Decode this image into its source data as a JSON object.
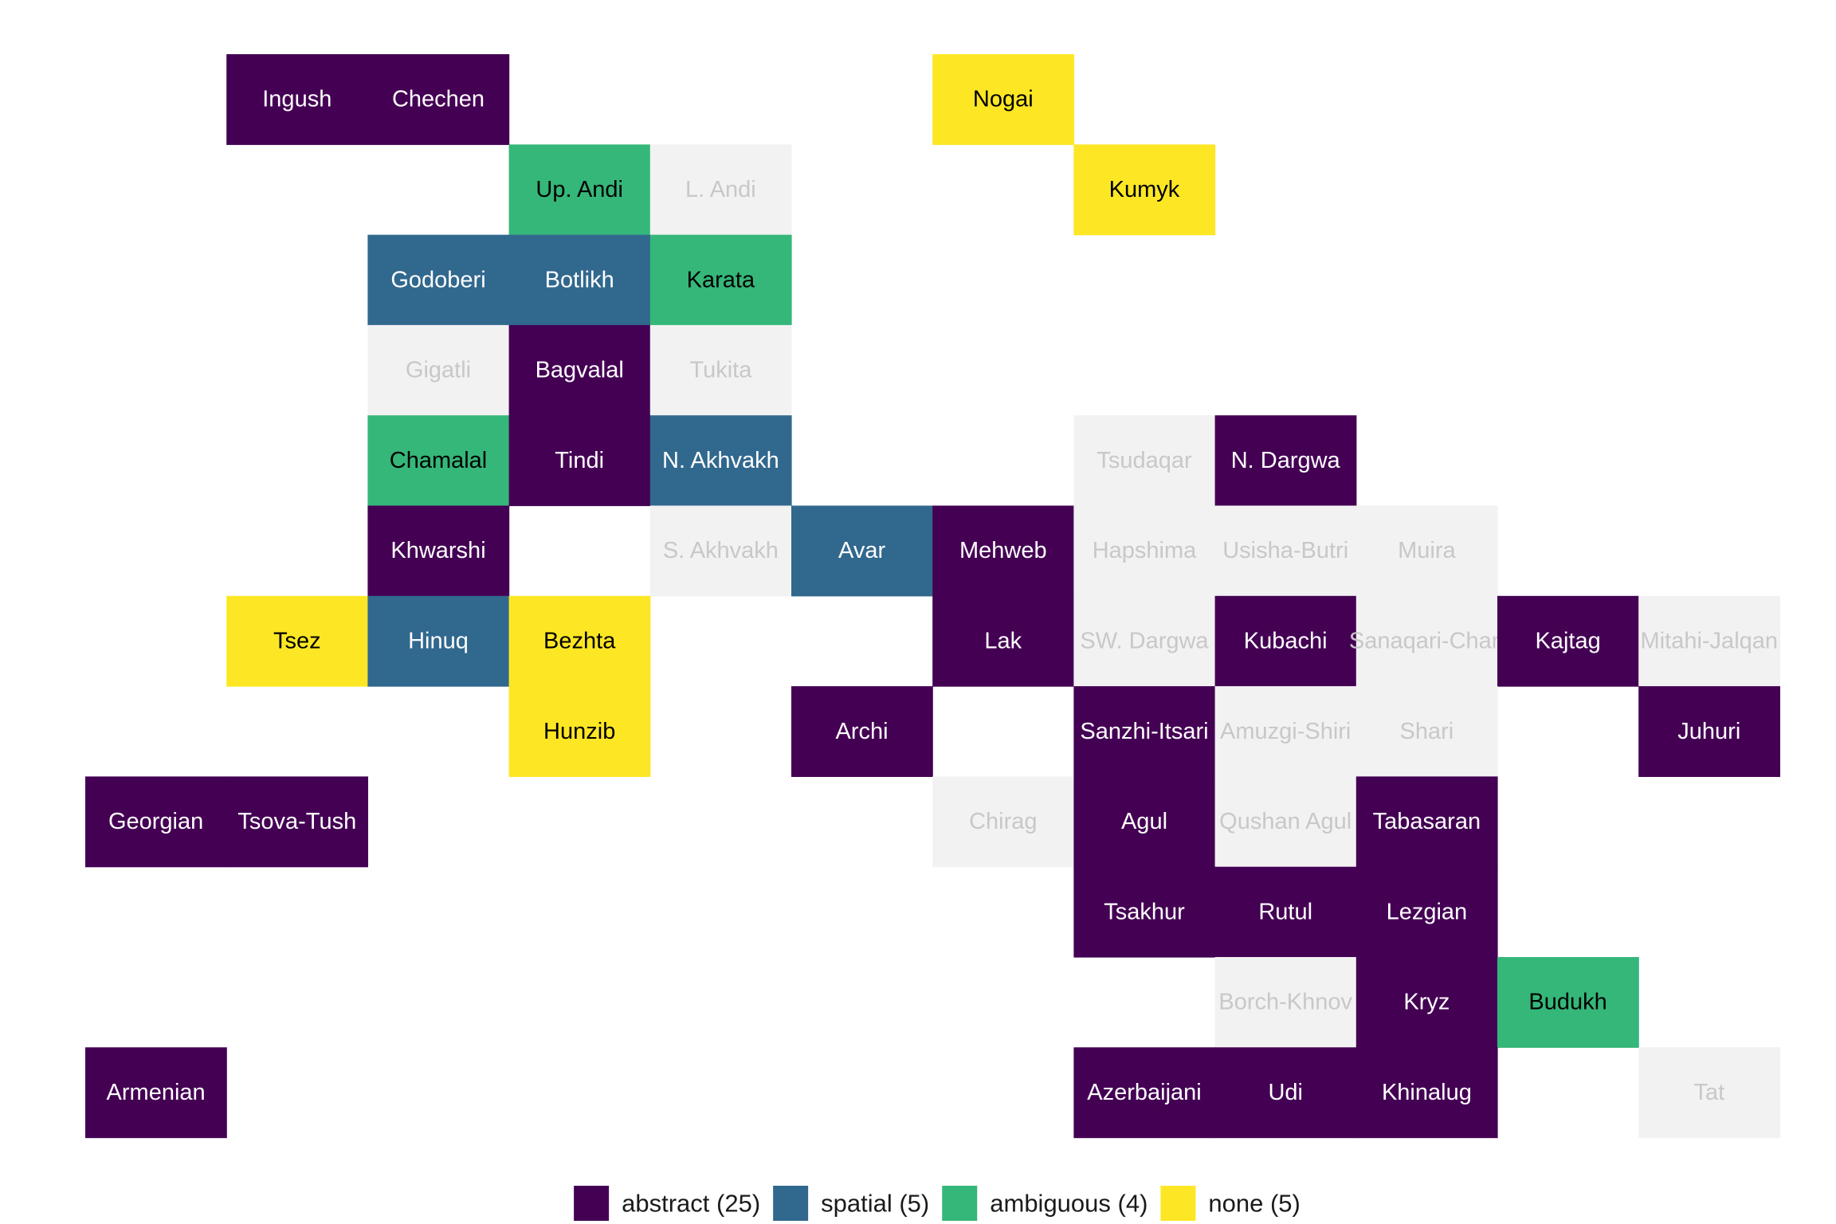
{
  "chart_data": {
    "type": "heatmap",
    "title": "",
    "xlabel": "",
    "ylabel": "",
    "grid": false,
    "legend_position": "bottom",
    "categories": [
      {
        "key": "abstract",
        "label": "abstract (25)",
        "color": "#440154",
        "text_color": "#ffffff"
      },
      {
        "key": "spatial",
        "label": "spatial (5)",
        "color": "#31688E",
        "text_color": "#ffffff"
      },
      {
        "key": "ambiguous",
        "label": "ambiguous (4)",
        "color": "#35B779",
        "text_color": "#000000"
      },
      {
        "key": "none",
        "label": "none (5)",
        "color": "#FDE725",
        "text_color": "#000000"
      },
      {
        "key": "na",
        "label": "",
        "color": "#F2F2F2",
        "text_color": "#C8C8C8"
      }
    ],
    "tiles": [
      {
        "name": "Ingush",
        "col": 2,
        "row": 1,
        "category": "abstract"
      },
      {
        "name": "Chechen",
        "col": 3,
        "row": 1,
        "category": "abstract"
      },
      {
        "name": "Nogai",
        "col": 7,
        "row": 1,
        "category": "none"
      },
      {
        "name": "Up. Andi",
        "col": 4,
        "row": 2,
        "category": "ambiguous"
      },
      {
        "name": "L. Andi",
        "col": 5,
        "row": 2,
        "category": "na"
      },
      {
        "name": "Kumyk",
        "col": 8,
        "row": 2,
        "category": "none"
      },
      {
        "name": "Godoberi",
        "col": 3,
        "row": 3,
        "category": "spatial"
      },
      {
        "name": "Botlikh",
        "col": 4,
        "row": 3,
        "category": "spatial"
      },
      {
        "name": "Karata",
        "col": 5,
        "row": 3,
        "category": "ambiguous"
      },
      {
        "name": "Gigatli",
        "col": 3,
        "row": 4,
        "category": "na"
      },
      {
        "name": "Bagvalal",
        "col": 4,
        "row": 4,
        "category": "abstract"
      },
      {
        "name": "Tukita",
        "col": 5,
        "row": 4,
        "category": "na"
      },
      {
        "name": "Chamalal",
        "col": 3,
        "row": 5,
        "category": "ambiguous"
      },
      {
        "name": "Tindi",
        "col": 4,
        "row": 5,
        "category": "abstract"
      },
      {
        "name": "N. Akhvakh",
        "col": 5,
        "row": 5,
        "category": "spatial"
      },
      {
        "name": "Tsudaqar",
        "col": 8,
        "row": 5,
        "category": "na"
      },
      {
        "name": "N. Dargwa",
        "col": 9,
        "row": 5,
        "category": "abstract"
      },
      {
        "name": "Khwarshi",
        "col": 3,
        "row": 6,
        "category": "abstract"
      },
      {
        "name": "S. Akhvakh",
        "col": 5,
        "row": 6,
        "category": "na"
      },
      {
        "name": "Avar",
        "col": 6,
        "row": 6,
        "category": "spatial"
      },
      {
        "name": "Mehweb",
        "col": 7,
        "row": 6,
        "category": "abstract"
      },
      {
        "name": "Hapshima",
        "col": 8,
        "row": 6,
        "category": "na"
      },
      {
        "name": "Usisha-Butri",
        "col": 9,
        "row": 6,
        "category": "na"
      },
      {
        "name": "Muira",
        "col": 10,
        "row": 6,
        "category": "na"
      },
      {
        "name": "Tsez",
        "col": 2,
        "row": 7,
        "category": "none"
      },
      {
        "name": "Hinuq",
        "col": 3,
        "row": 7,
        "category": "spatial"
      },
      {
        "name": "Bezhta",
        "col": 4,
        "row": 7,
        "category": "none"
      },
      {
        "name": "Lak",
        "col": 7,
        "row": 7,
        "category": "abstract"
      },
      {
        "name": "SW. Dargwa",
        "col": 8,
        "row": 7,
        "category": "na"
      },
      {
        "name": "Kubachi",
        "col": 9,
        "row": 7,
        "category": "abstract"
      },
      {
        "name": "Sanaqari-Chan",
        "col": 10,
        "row": 7,
        "category": "na"
      },
      {
        "name": "Kajtag",
        "col": 11,
        "row": 7,
        "category": "abstract"
      },
      {
        "name": "Mitahi-Jalqan",
        "col": 12,
        "row": 7,
        "category": "na"
      },
      {
        "name": "Hunzib",
        "col": 4,
        "row": 8,
        "category": "none"
      },
      {
        "name": "Archi",
        "col": 6,
        "row": 8,
        "category": "abstract"
      },
      {
        "name": "Sanzhi-Itsari",
        "col": 8,
        "row": 8,
        "category": "abstract"
      },
      {
        "name": "Amuzgi-Shiri",
        "col": 9,
        "row": 8,
        "category": "na"
      },
      {
        "name": "Shari",
        "col": 10,
        "row": 8,
        "category": "na"
      },
      {
        "name": "Juhuri",
        "col": 12,
        "row": 8,
        "category": "abstract"
      },
      {
        "name": "Georgian",
        "col": 1,
        "row": 9,
        "category": "abstract"
      },
      {
        "name": "Tsova-Tush",
        "col": 2,
        "row": 9,
        "category": "abstract"
      },
      {
        "name": "Chirag",
        "col": 7,
        "row": 9,
        "category": "na"
      },
      {
        "name": "Agul",
        "col": 8,
        "row": 9,
        "category": "abstract"
      },
      {
        "name": "Qushan Agul",
        "col": 9,
        "row": 9,
        "category": "na"
      },
      {
        "name": "Tabasaran",
        "col": 10,
        "row": 9,
        "category": "abstract"
      },
      {
        "name": "Tsakhur",
        "col": 8,
        "row": 10,
        "category": "abstract"
      },
      {
        "name": "Rutul",
        "col": 9,
        "row": 10,
        "category": "abstract"
      },
      {
        "name": "Lezgian",
        "col": 10,
        "row": 10,
        "category": "abstract"
      },
      {
        "name": "Borch-Khnov",
        "col": 9,
        "row": 11,
        "category": "na"
      },
      {
        "name": "Kryz",
        "col": 10,
        "row": 11,
        "category": "abstract"
      },
      {
        "name": "Budukh",
        "col": 11,
        "row": 11,
        "category": "ambiguous"
      },
      {
        "name": "Armenian",
        "col": 1,
        "row": 12,
        "category": "abstract"
      },
      {
        "name": "Azerbaijani",
        "col": 8,
        "row": 12,
        "category": "abstract"
      },
      {
        "name": "Udi",
        "col": 9,
        "row": 12,
        "category": "abstract"
      },
      {
        "name": "Khinalug",
        "col": 10,
        "row": 12,
        "category": "abstract"
      },
      {
        "name": "Tat",
        "col": 12,
        "row": 12,
        "category": "na"
      }
    ]
  }
}
